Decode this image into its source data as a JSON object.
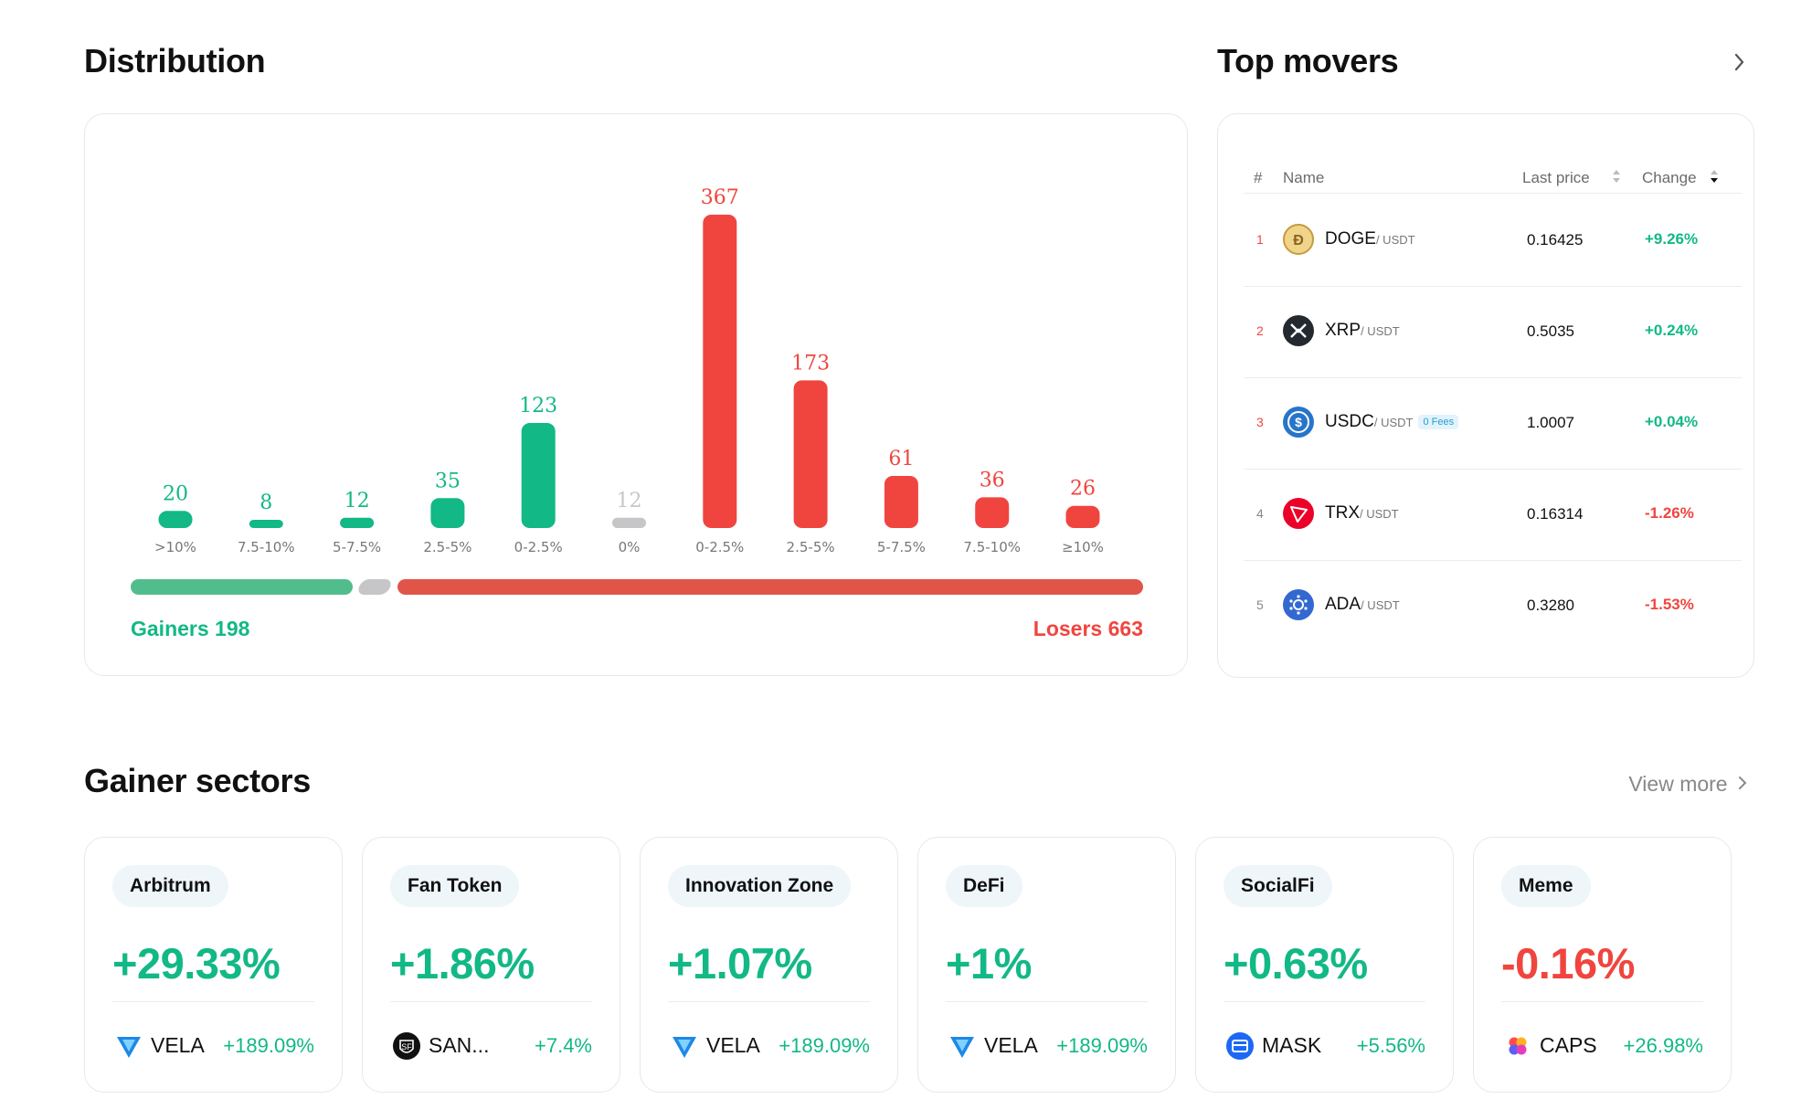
{
  "colors": {
    "gain": "#12b886",
    "loss": "#f0453f",
    "neutral": "#c6c6c8",
    "gain_bar": "#52bd8c",
    "loss_bar": "#e05548"
  },
  "distribution": {
    "title": "Distribution",
    "gainers_label": "Gainers 198",
    "losers_label": "Losers 663"
  },
  "chart_data": {
    "type": "bar",
    "categories": [
      ">10%",
      "7.5-10%",
      "5-7.5%",
      "2.5-5%",
      "0-2.5%",
      "0%",
      "0-2.5%",
      "2.5-5%",
      "5-7.5%",
      "7.5-10%",
      "≥10%"
    ],
    "values": [
      20,
      8,
      12,
      35,
      123,
      12,
      367,
      173,
      61,
      36,
      26
    ],
    "groups": [
      "gain",
      "gain",
      "gain",
      "gain",
      "gain",
      "neutral",
      "loss",
      "loss",
      "loss",
      "loss",
      "loss"
    ],
    "title": "",
    "xlabel": "",
    "ylabel": "",
    "grid": false
  },
  "movers": {
    "title": "Top movers",
    "more_icon": "chevron-right-icon",
    "columns": {
      "rank": "#",
      "name": "Name",
      "price": "Last price",
      "change": "Change"
    },
    "rows": [
      {
        "rank": "1",
        "coin": "DOGE",
        "quote": "/ USDT",
        "badge": "",
        "price": "0.16425",
        "change": "+9.26%",
        "dir": "gain",
        "icon": "doge-icon"
      },
      {
        "rank": "2",
        "coin": "XRP",
        "quote": "/ USDT",
        "badge": "",
        "price": "0.5035",
        "change": "+0.24%",
        "dir": "gain",
        "icon": "xrp-icon"
      },
      {
        "rank": "3",
        "coin": "USDC",
        "quote": "/ USDT",
        "badge": "0 Fees",
        "price": "1.0007",
        "change": "+0.04%",
        "dir": "gain",
        "icon": "usdc-icon"
      },
      {
        "rank": "4",
        "coin": "TRX",
        "quote": "/ USDT",
        "badge": "",
        "price": "0.16314",
        "change": "-1.26%",
        "dir": "loss",
        "icon": "trx-icon"
      },
      {
        "rank": "5",
        "coin": "ADA",
        "quote": "/ USDT",
        "badge": "",
        "price": "0.3280",
        "change": "-1.53%",
        "dir": "loss",
        "icon": "ada-icon"
      }
    ]
  },
  "sectors": {
    "title": "Gainer sectors",
    "view_more": "View more",
    "items": [
      {
        "name": "Arbitrum",
        "pct": "+29.33%",
        "dir": "gain",
        "coin": "VELA",
        "coin_pct": "+189.09%",
        "icon": "vela-icon"
      },
      {
        "name": "Fan Token",
        "pct": "+1.86%",
        "dir": "gain",
        "coin": "SAN...",
        "coin_pct": "+7.4%",
        "icon": "santos-icon"
      },
      {
        "name": "Innovation Zone",
        "pct": "+1.07%",
        "dir": "gain",
        "coin": "VELA",
        "coin_pct": "+189.09%",
        "icon": "vela-icon"
      },
      {
        "name": "DeFi",
        "pct": "+1%",
        "dir": "gain",
        "coin": "VELA",
        "coin_pct": "+189.09%",
        "icon": "vela-icon"
      },
      {
        "name": "SocialFi",
        "pct": "+0.63%",
        "dir": "gain",
        "coin": "MASK",
        "coin_pct": "+5.56%",
        "icon": "mask-icon"
      },
      {
        "name": "Meme",
        "pct": "-0.16%",
        "dir": "loss",
        "coin": "CAPS",
        "coin_pct": "+26.98%",
        "icon": "caps-icon"
      }
    ]
  }
}
